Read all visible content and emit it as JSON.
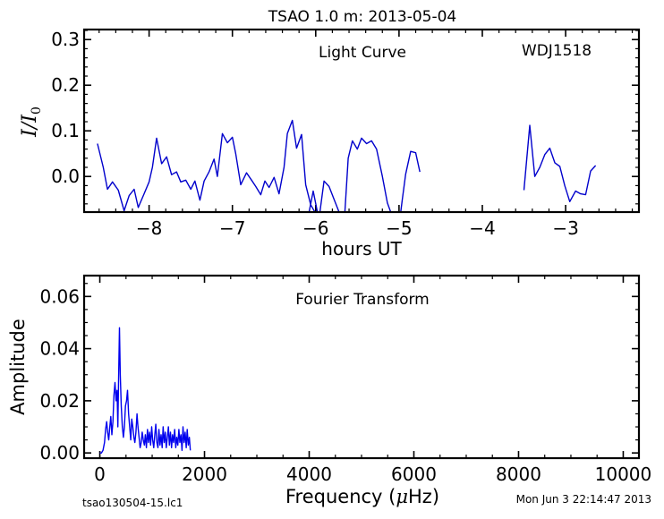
{
  "figure": {
    "title": "TSAO 1.0 m:  2013-05-04",
    "footer_left": "tsao130504-15.lc1",
    "footer_right": "Mon Jun  3 22:14:47 2013"
  },
  "chart_data": [
    {
      "type": "line",
      "title": "Light Curve",
      "annotation": "WDJ1518",
      "xlabel": "hours UT",
      "ylabel": "I / I0",
      "ylabel_main": "I",
      "ylabel_sep": "/",
      "ylabel_sub_base": "I",
      "ylabel_sub": "0",
      "xlim": [
        -8.78,
        -2.12
      ],
      "ylim": [
        -0.078,
        0.322
      ],
      "xticks": [
        -8,
        -7,
        -6,
        -5,
        -4,
        -3
      ],
      "xtick_labels": [
        "−8",
        "−7",
        "−6",
        "−5",
        "−4",
        "−3"
      ],
      "yticks": [
        0.0,
        0.1,
        0.2,
        0.3
      ],
      "ytick_labels": [
        "0.0",
        "0.1",
        "0.2",
        "0.3"
      ],
      "color": "#0000cc",
      "segments": [
        [
          [
            -8.62,
            0.072
          ],
          [
            -8.55,
            0.02
          ],
          [
            -8.5,
            -0.028
          ],
          [
            -8.44,
            -0.012
          ],
          [
            -8.37,
            -0.03
          ],
          [
            -8.3,
            -0.075
          ],
          [
            -8.24,
            -0.042
          ],
          [
            -8.18,
            -0.028
          ],
          [
            -8.13,
            -0.068
          ],
          [
            -8.06,
            -0.038
          ],
          [
            -8.0,
            -0.012
          ],
          [
            -7.96,
            0.02
          ],
          [
            -7.91,
            0.084
          ],
          [
            -7.85,
            0.028
          ],
          [
            -7.79,
            0.043
          ],
          [
            -7.73,
            0.004
          ],
          [
            -7.67,
            0.01
          ],
          [
            -7.62,
            -0.012
          ],
          [
            -7.56,
            -0.008
          ],
          [
            -7.5,
            -0.028
          ],
          [
            -7.45,
            -0.01
          ],
          [
            -7.39,
            -0.052
          ],
          [
            -7.34,
            -0.01
          ],
          [
            -7.28,
            0.01
          ],
          [
            -7.22,
            0.038
          ],
          [
            -7.18,
            0.0
          ],
          [
            -7.12,
            0.094
          ],
          [
            -7.06,
            0.074
          ],
          [
            -7.0,
            0.086
          ],
          [
            -6.96,
            0.05
          ],
          [
            -6.9,
            -0.018
          ],
          [
            -6.83,
            0.008
          ],
          [
            -6.77,
            -0.008
          ],
          [
            -6.72,
            -0.022
          ],
          [
            -6.66,
            -0.04
          ],
          [
            -6.61,
            -0.01
          ],
          [
            -6.56,
            -0.024
          ],
          [
            -6.5,
            -0.002
          ],
          [
            -6.44,
            -0.038
          ],
          [
            -6.38,
            0.02
          ],
          [
            -6.34,
            0.094
          ],
          [
            -6.28,
            0.123
          ],
          [
            -6.23,
            0.062
          ],
          [
            -6.17,
            0.092
          ],
          [
            -6.12,
            -0.018
          ],
          [
            -6.06,
            -0.062
          ],
          [
            -6.01,
            -0.078
          ]
        ],
        [
          [
            -6.08,
            -0.078
          ],
          [
            -6.03,
            -0.032
          ],
          [
            -5.98,
            -0.078
          ]
        ],
        [
          [
            -5.95,
            -0.078
          ],
          [
            -5.9,
            -0.01
          ],
          [
            -5.84,
            -0.022
          ],
          [
            -5.78,
            -0.05
          ],
          [
            -5.72,
            -0.078
          ]
        ],
        [
          [
            -5.65,
            -0.078
          ],
          [
            -5.61,
            0.04
          ],
          [
            -5.56,
            0.078
          ],
          [
            -5.5,
            0.06
          ],
          [
            -5.45,
            0.084
          ],
          [
            -5.39,
            0.072
          ],
          [
            -5.33,
            0.078
          ],
          [
            -5.27,
            0.06
          ],
          [
            -5.2,
            0.0
          ],
          [
            -5.14,
            -0.058
          ],
          [
            -5.1,
            -0.078
          ]
        ],
        [
          [
            -4.98,
            -0.078
          ],
          [
            -4.96,
            -0.05
          ],
          [
            -4.92,
            0.005
          ],
          [
            -4.86,
            0.055
          ],
          [
            -4.8,
            0.052
          ],
          [
            -4.75,
            0.01
          ]
        ],
        [
          [
            -3.5,
            -0.03
          ],
          [
            -3.43,
            0.112
          ],
          [
            -3.37,
            0.0
          ],
          [
            -3.31,
            0.02
          ],
          [
            -3.25,
            0.048
          ],
          [
            -3.19,
            0.062
          ],
          [
            -3.13,
            0.03
          ],
          [
            -3.07,
            0.022
          ],
          [
            -3.01,
            -0.02
          ],
          [
            -2.95,
            -0.055
          ],
          [
            -2.88,
            -0.032
          ],
          [
            -2.82,
            -0.038
          ],
          [
            -2.76,
            -0.04
          ],
          [
            -2.7,
            0.012
          ],
          [
            -2.64,
            0.024
          ]
        ]
      ]
    },
    {
      "type": "line",
      "title": "Fourier Transform",
      "xlabel": "Frequency (μHz)",
      "xlabel_pre": "Frequency (",
      "xlabel_mu": "μ",
      "xlabel_post": "Hz)",
      "ylabel": "Amplitude",
      "xlim": [
        -300,
        10300
      ],
      "ylim": [
        -0.002,
        0.068
      ],
      "xticks": [
        0,
        2000,
        4000,
        6000,
        8000,
        10000
      ],
      "xtick_labels": [
        "0",
        "2000",
        "4000",
        "6000",
        "8000",
        "10000"
      ],
      "yticks": [
        0.0,
        0.02,
        0.04,
        0.06
      ],
      "ytick_labels": [
        "0.00",
        "0.02",
        "0.04",
        "0.06"
      ],
      "color": "#0000ee",
      "series": [
        [
          0,
          0.0
        ],
        [
          30,
          0.0
        ],
        [
          60,
          0.001
        ],
        [
          90,
          0.004
        ],
        [
          110,
          0.009
        ],
        [
          130,
          0.012
        ],
        [
          150,
          0.008
        ],
        [
          170,
          0.005
        ],
        [
          190,
          0.01
        ],
        [
          210,
          0.014
        ],
        [
          230,
          0.007
        ],
        [
          250,
          0.012
        ],
        [
          270,
          0.022
        ],
        [
          290,
          0.027
        ],
        [
          310,
          0.02
        ],
        [
          330,
          0.024
        ],
        [
          345,
          0.01
        ],
        [
          360,
          0.03
        ],
        [
          375,
          0.048
        ],
        [
          390,
          0.03
        ],
        [
          410,
          0.018
        ],
        [
          430,
          0.01
        ],
        [
          450,
          0.006
        ],
        [
          470,
          0.01
        ],
        [
          490,
          0.018
        ],
        [
          510,
          0.02
        ],
        [
          530,
          0.024
        ],
        [
          550,
          0.015
        ],
        [
          570,
          0.01
        ],
        [
          590,
          0.005
        ],
        [
          610,
          0.013
        ],
        [
          630,
          0.01
        ],
        [
          650,
          0.006
        ],
        [
          670,
          0.004
        ],
        [
          690,
          0.008
        ],
        [
          710,
          0.015
        ],
        [
          730,
          0.01
        ],
        [
          750,
          0.006
        ],
        [
          770,
          0.002
        ],
        [
          790,
          0.004
        ],
        [
          810,
          0.008
        ],
        [
          830,
          0.005
        ],
        [
          850,
          0.003
        ],
        [
          870,
          0.007
        ],
        [
          890,
          0.002
        ],
        [
          910,
          0.009
        ],
        [
          930,
          0.004
        ],
        [
          950,
          0.008
        ],
        [
          970,
          0.003
        ],
        [
          990,
          0.01
        ],
        [
          1010,
          0.005
        ],
        [
          1030,
          0.002
        ],
        [
          1050,
          0.007
        ],
        [
          1070,
          0.011
        ],
        [
          1090,
          0.004
        ],
        [
          1110,
          0.002
        ],
        [
          1130,
          0.009
        ],
        [
          1150,
          0.003
        ],
        [
          1170,
          0.007
        ],
        [
          1190,
          0.002
        ],
        [
          1210,
          0.01
        ],
        [
          1230,
          0.004
        ],
        [
          1250,
          0.008
        ],
        [
          1270,
          0.002
        ],
        [
          1290,
          0.006
        ],
        [
          1310,
          0.01
        ],
        [
          1330,
          0.003
        ],
        [
          1350,
          0.008
        ],
        [
          1370,
          0.002
        ],
        [
          1390,
          0.007
        ],
        [
          1410,
          0.004
        ],
        [
          1430,
          0.009
        ],
        [
          1450,
          0.002
        ],
        [
          1470,
          0.006
        ],
        [
          1490,
          0.003
        ],
        [
          1510,
          0.009
        ],
        [
          1530,
          0.004
        ],
        [
          1550,
          0.007
        ],
        [
          1570,
          0.001
        ],
        [
          1590,
          0.01
        ],
        [
          1610,
          0.004
        ],
        [
          1630,
          0.008
        ],
        [
          1650,
          0.002
        ],
        [
          1670,
          0.009
        ],
        [
          1690,
          0.003
        ],
        [
          1710,
          0.006
        ],
        [
          1730,
          0.001
        ]
      ]
    }
  ]
}
